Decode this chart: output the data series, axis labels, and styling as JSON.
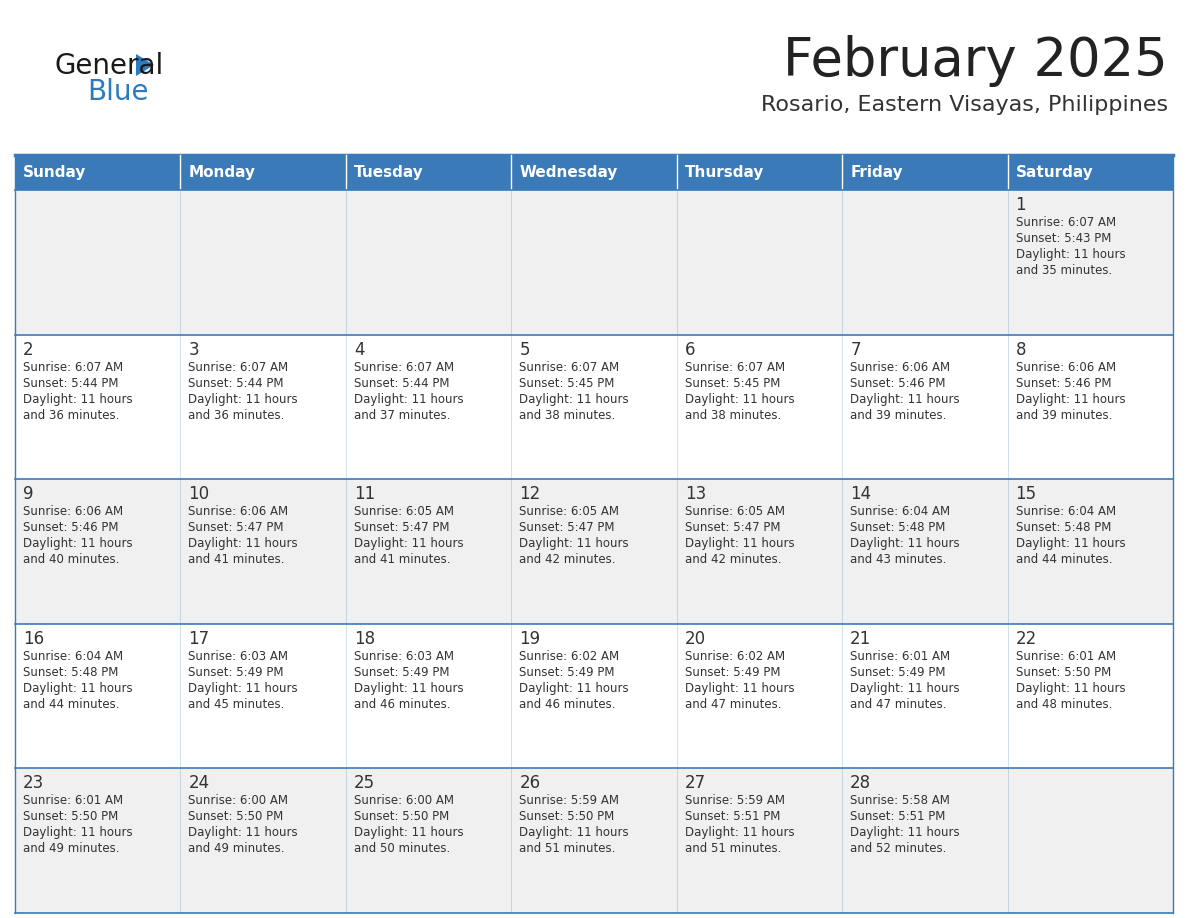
{
  "title": "February 2025",
  "subtitle": "Rosario, Eastern Visayas, Philippines",
  "days_of_week": [
    "Sunday",
    "Monday",
    "Tuesday",
    "Wednesday",
    "Thursday",
    "Friday",
    "Saturday"
  ],
  "header_bg": "#3a7ab8",
  "header_text": "#ffffff",
  "cell_bg_gray": "#f0f0f0",
  "cell_bg_white": "#ffffff",
  "row_border_color": "#3a7ab8",
  "day_number_color": "#333333",
  "text_color": "#333333",
  "title_color": "#222222",
  "subtitle_color": "#333333",
  "logo_general_color": "#1a1a1a",
  "logo_blue_color": "#2a7bbf",
  "calendar_data": [
    {
      "day": 1,
      "col": 6,
      "row": 0,
      "sunrise": "6:07 AM",
      "sunset": "5:43 PM",
      "daylight": "11 hours and 35 minutes"
    },
    {
      "day": 2,
      "col": 0,
      "row": 1,
      "sunrise": "6:07 AM",
      "sunset": "5:44 PM",
      "daylight": "11 hours and 36 minutes"
    },
    {
      "day": 3,
      "col": 1,
      "row": 1,
      "sunrise": "6:07 AM",
      "sunset": "5:44 PM",
      "daylight": "11 hours and 36 minutes"
    },
    {
      "day": 4,
      "col": 2,
      "row": 1,
      "sunrise": "6:07 AM",
      "sunset": "5:44 PM",
      "daylight": "11 hours and 37 minutes"
    },
    {
      "day": 5,
      "col": 3,
      "row": 1,
      "sunrise": "6:07 AM",
      "sunset": "5:45 PM",
      "daylight": "11 hours and 38 minutes"
    },
    {
      "day": 6,
      "col": 4,
      "row": 1,
      "sunrise": "6:07 AM",
      "sunset": "5:45 PM",
      "daylight": "11 hours and 38 minutes"
    },
    {
      "day": 7,
      "col": 5,
      "row": 1,
      "sunrise": "6:06 AM",
      "sunset": "5:46 PM",
      "daylight": "11 hours and 39 minutes"
    },
    {
      "day": 8,
      "col": 6,
      "row": 1,
      "sunrise": "6:06 AM",
      "sunset": "5:46 PM",
      "daylight": "11 hours and 39 minutes"
    },
    {
      "day": 9,
      "col": 0,
      "row": 2,
      "sunrise": "6:06 AM",
      "sunset": "5:46 PM",
      "daylight": "11 hours and 40 minutes"
    },
    {
      "day": 10,
      "col": 1,
      "row": 2,
      "sunrise": "6:06 AM",
      "sunset": "5:47 PM",
      "daylight": "11 hours and 41 minutes"
    },
    {
      "day": 11,
      "col": 2,
      "row": 2,
      "sunrise": "6:05 AM",
      "sunset": "5:47 PM",
      "daylight": "11 hours and 41 minutes"
    },
    {
      "day": 12,
      "col": 3,
      "row": 2,
      "sunrise": "6:05 AM",
      "sunset": "5:47 PM",
      "daylight": "11 hours and 42 minutes"
    },
    {
      "day": 13,
      "col": 4,
      "row": 2,
      "sunrise": "6:05 AM",
      "sunset": "5:47 PM",
      "daylight": "11 hours and 42 minutes"
    },
    {
      "day": 14,
      "col": 5,
      "row": 2,
      "sunrise": "6:04 AM",
      "sunset": "5:48 PM",
      "daylight": "11 hours and 43 minutes"
    },
    {
      "day": 15,
      "col": 6,
      "row": 2,
      "sunrise": "6:04 AM",
      "sunset": "5:48 PM",
      "daylight": "11 hours and 44 minutes"
    },
    {
      "day": 16,
      "col": 0,
      "row": 3,
      "sunrise": "6:04 AM",
      "sunset": "5:48 PM",
      "daylight": "11 hours and 44 minutes"
    },
    {
      "day": 17,
      "col": 1,
      "row": 3,
      "sunrise": "6:03 AM",
      "sunset": "5:49 PM",
      "daylight": "11 hours and 45 minutes"
    },
    {
      "day": 18,
      "col": 2,
      "row": 3,
      "sunrise": "6:03 AM",
      "sunset": "5:49 PM",
      "daylight": "11 hours and 46 minutes"
    },
    {
      "day": 19,
      "col": 3,
      "row": 3,
      "sunrise": "6:02 AM",
      "sunset": "5:49 PM",
      "daylight": "11 hours and 46 minutes"
    },
    {
      "day": 20,
      "col": 4,
      "row": 3,
      "sunrise": "6:02 AM",
      "sunset": "5:49 PM",
      "daylight": "11 hours and 47 minutes"
    },
    {
      "day": 21,
      "col": 5,
      "row": 3,
      "sunrise": "6:01 AM",
      "sunset": "5:49 PM",
      "daylight": "11 hours and 47 minutes"
    },
    {
      "day": 22,
      "col": 6,
      "row": 3,
      "sunrise": "6:01 AM",
      "sunset": "5:50 PM",
      "daylight": "11 hours and 48 minutes"
    },
    {
      "day": 23,
      "col": 0,
      "row": 4,
      "sunrise": "6:01 AM",
      "sunset": "5:50 PM",
      "daylight": "11 hours and 49 minutes"
    },
    {
      "day": 24,
      "col": 1,
      "row": 4,
      "sunrise": "6:00 AM",
      "sunset": "5:50 PM",
      "daylight": "11 hours and 49 minutes"
    },
    {
      "day": 25,
      "col": 2,
      "row": 4,
      "sunrise": "6:00 AM",
      "sunset": "5:50 PM",
      "daylight": "11 hours and 50 minutes"
    },
    {
      "day": 26,
      "col": 3,
      "row": 4,
      "sunrise": "5:59 AM",
      "sunset": "5:50 PM",
      "daylight": "11 hours and 51 minutes"
    },
    {
      "day": 27,
      "col": 4,
      "row": 4,
      "sunrise": "5:59 AM",
      "sunset": "5:51 PM",
      "daylight": "11 hours and 51 minutes"
    },
    {
      "day": 28,
      "col": 5,
      "row": 4,
      "sunrise": "5:58 AM",
      "sunset": "5:51 PM",
      "daylight": "11 hours and 52 minutes"
    }
  ]
}
